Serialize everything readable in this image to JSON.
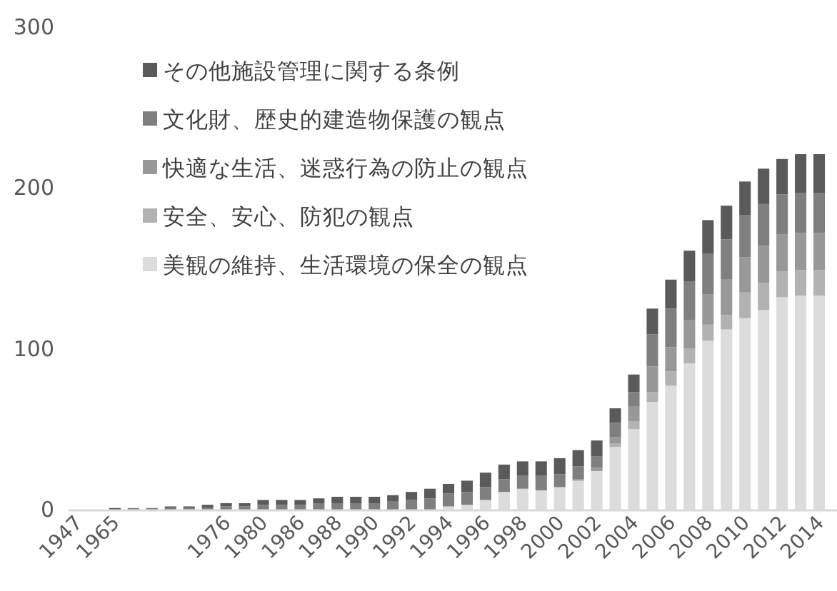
{
  "chart_data": {
    "type": "bar",
    "stacked": true,
    "categories": [
      "1947",
      null,
      "1965",
      null,
      null,
      null,
      null,
      null,
      "1976",
      null,
      "1980",
      null,
      "1986",
      null,
      "1988",
      null,
      "1990",
      null,
      "1992",
      null,
      "1994",
      null,
      "1996",
      null,
      "1998",
      null,
      "2000",
      null,
      "2002",
      null,
      "2004",
      null,
      "2006",
      null,
      "2008",
      null,
      "2010",
      null,
      "2012",
      null,
      "2014"
    ],
    "series": [
      {
        "name": "美観の維持、生活環境の保全の観点",
        "color": "#dcdcdc",
        "values": [
          0,
          0,
          0,
          0,
          0,
          0,
          0,
          0,
          0,
          0,
          0,
          0,
          0,
          0,
          0,
          0,
          0,
          0,
          0,
          0,
          2,
          3,
          6,
          11,
          13,
          12,
          14,
          18,
          24,
          39,
          50,
          67,
          77,
          91,
          105,
          112,
          119,
          124,
          132,
          133,
          133
        ]
      },
      {
        "name": "安全、安心、防犯の観点",
        "color": "#b2b2b2",
        "values": [
          0,
          0,
          0,
          0,
          0,
          0,
          0,
          0,
          0,
          0,
          0,
          0,
          0,
          0,
          0,
          0,
          0,
          0,
          0,
          0,
          0,
          0,
          0,
          0,
          0,
          0,
          0,
          null,
          null,
          2,
          5,
          6,
          9,
          9,
          10,
          9,
          16,
          17,
          16,
          16,
          16
        ]
      },
      {
        "name": "快適な生活、迷惑行為の防止の観点",
        "color": "#989898",
        "values": [
          0,
          0,
          0,
          0,
          0,
          0,
          0,
          0,
          0,
          0,
          0,
          0,
          0,
          0,
          0,
          0,
          0,
          0,
          0,
          0,
          0,
          0,
          0,
          0,
          0,
          0,
          0,
          1,
          2,
          4,
          9,
          16,
          15,
          18,
          19,
          22,
          22,
          23,
          23,
          23,
          23
        ]
      },
      {
        "name": "文化財、歴史的建造物保護の観点",
        "color": "#7f7f7f",
        "values": [
          0,
          0,
          0,
          1,
          1,
          1,
          1,
          1,
          2,
          2,
          3,
          3,
          3,
          4,
          4,
          4,
          4,
          5,
          6,
          7,
          8,
          8,
          8,
          8,
          8,
          9,
          8,
          8,
          7,
          9,
          9,
          20,
          24,
          24,
          25,
          25,
          26,
          26,
          25,
          25,
          25
        ]
      },
      {
        "name": "その他施設管理に関する条例",
        "color": "#5a5a5a",
        "values": [
          0,
          0,
          1,
          0,
          0,
          1,
          1,
          2,
          2,
          2,
          3,
          3,
          3,
          3,
          4,
          4,
          4,
          4,
          5,
          6,
          6,
          7,
          9,
          9,
          9,
          9,
          10,
          10,
          10,
          9,
          11,
          16,
          18,
          19,
          21,
          21,
          21,
          22,
          22,
          24,
          24
        ]
      }
    ],
    "ylim": [
      0,
      300
    ],
    "yticks": [
      0,
      100,
      200,
      300
    ],
    "grid": false,
    "legend": "top left"
  }
}
